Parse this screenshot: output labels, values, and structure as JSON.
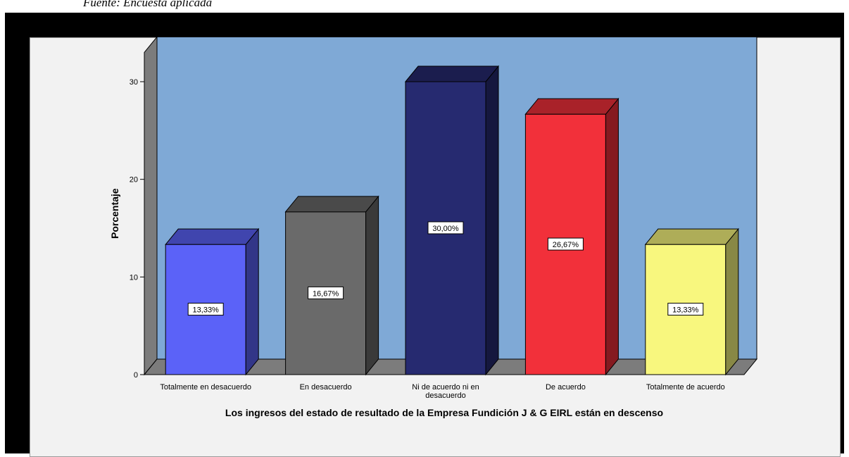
{
  "source_note": "Fuente: Encuesta aplicada",
  "colors": {
    "wall": "#7fa9d6",
    "side_wall": "#7c7c7c",
    "floor": "#7c7c7c",
    "frame": "#000000"
  },
  "chart_data": {
    "type": "bar",
    "title": "",
    "xlabel": "Los ingresos del estado de resultado de la Empresa Fundición J & G EIRL están en descenso",
    "ylabel": "Porcentaje",
    "ylim": [
      0,
      33
    ],
    "yticks": [
      0,
      10,
      20,
      30
    ],
    "grid": false,
    "categories": [
      [
        "Totalmente en desacuerdo"
      ],
      [
        "En desacuerdo"
      ],
      [
        "Ni de acuerdo ni en",
        "desacuerdo"
      ],
      [
        "De acuerdo"
      ],
      [
        "Totalmente de acuerdo"
      ]
    ],
    "values": [
      13.33,
      16.67,
      30.0,
      26.67,
      13.33
    ],
    "labels": [
      "13,33%",
      "16,67%",
      "30,00%",
      "26,67%",
      "13,33%"
    ],
    "bar_colors": [
      "#5b62f8",
      "#6a6a6a",
      "#262a70",
      "#f2303a",
      "#f8f77e"
    ]
  }
}
